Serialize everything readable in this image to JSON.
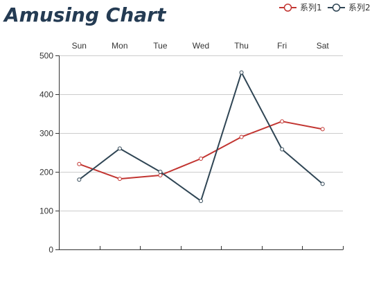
{
  "chart_data": {
    "type": "line",
    "title": "Amusing Chart",
    "categories": [
      "Sun",
      "Mon",
      "Tue",
      "Wed",
      "Thu",
      "Fri",
      "Sat"
    ],
    "ylim": [
      0,
      500
    ],
    "yticks": [
      0,
      100,
      200,
      300,
      400,
      500
    ],
    "x_axis_labels_position": "top",
    "grid": true,
    "legend_position": "top-right",
    "series": [
      {
        "name": "系列1",
        "color": "#c23531",
        "values": [
          220,
          182,
          191,
          234,
          290,
          330,
          310
        ]
      },
      {
        "name": "系列2",
        "color": "#2f4554",
        "values": [
          180,
          260,
          200,
          125,
          456,
          258,
          169
        ]
      }
    ]
  },
  "colors": {
    "title": "#243b53",
    "axis": "#333333",
    "grid": "#cccccc",
    "point_fill": "#ffffff"
  }
}
